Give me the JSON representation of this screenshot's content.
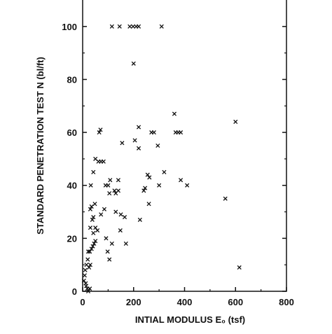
{
  "chart_data": {
    "type": "scatter",
    "title": "",
    "xlabel": "INTIAL MODULUS E₀ (tsf)",
    "ylabel": "STANDARD PENETRATION TEST N (bl/ft)",
    "xlim": [
      0,
      800
    ],
    "ylim": [
      0,
      110
    ],
    "xticks": [
      0,
      200,
      400,
      600,
      800
    ],
    "yticks": [
      0,
      20,
      40,
      60,
      80,
      100
    ],
    "xtick_labels": [
      "0",
      "200",
      "400",
      "600",
      "800"
    ],
    "ytick_labels": [
      "0",
      "20",
      "40",
      "60",
      "80",
      "100"
    ],
    "marker": "x",
    "grid": false,
    "series": [
      {
        "points": [
          [
            5,
            4
          ],
          [
            8,
            6
          ],
          [
            10,
            8
          ],
          [
            12,
            3
          ],
          [
            14,
            2
          ],
          [
            18,
            1
          ],
          [
            22,
            0
          ],
          [
            28,
            1
          ],
          [
            15,
            10
          ],
          [
            20,
            12
          ],
          [
            25,
            9
          ],
          [
            30,
            10
          ],
          [
            22,
            15
          ],
          [
            28,
            15
          ],
          [
            35,
            16
          ],
          [
            40,
            17
          ],
          [
            45,
            18
          ],
          [
            50,
            19
          ],
          [
            42,
            22
          ],
          [
            50,
            24
          ],
          [
            58,
            23
          ],
          [
            30,
            24
          ],
          [
            38,
            27
          ],
          [
            42,
            28
          ],
          [
            30,
            31
          ],
          [
            35,
            32
          ],
          [
            48,
            33
          ],
          [
            32,
            40
          ],
          [
            42,
            45
          ],
          [
            50,
            50
          ],
          [
            62,
            49
          ],
          [
            72,
            49
          ],
          [
            82,
            49
          ],
          [
            65,
            60
          ],
          [
            70,
            61
          ],
          [
            72,
            29
          ],
          [
            85,
            31
          ],
          [
            90,
            40
          ],
          [
            100,
            40
          ],
          [
            108,
            42
          ],
          [
            105,
            37
          ],
          [
            98,
            15
          ],
          [
            105,
            12
          ],
          [
            92,
            20
          ],
          [
            115,
            18
          ],
          [
            125,
            38
          ],
          [
            130,
            37
          ],
          [
            140,
            42
          ],
          [
            140,
            38
          ],
          [
            130,
            30
          ],
          [
            150,
            29
          ],
          [
            148,
            23
          ],
          [
            165,
            28
          ],
          [
            170,
            18
          ],
          [
            155,
            56
          ],
          [
            205,
            57
          ],
          [
            220,
            54
          ],
          [
            220,
            62
          ],
          [
            225,
            27
          ],
          [
            240,
            38
          ],
          [
            245,
            39
          ],
          [
            255,
            44
          ],
          [
            260,
            33
          ],
          [
            262,
            43
          ],
          [
            270,
            60
          ],
          [
            280,
            60
          ],
          [
            295,
            55
          ],
          [
            300,
            40
          ],
          [
            320,
            45
          ],
          [
            360,
            67
          ],
          [
            365,
            60
          ],
          [
            375,
            60
          ],
          [
            385,
            60
          ],
          [
            385,
            42
          ],
          [
            410,
            40
          ],
          [
            560,
            35
          ],
          [
            600,
            64
          ],
          [
            615,
            9
          ],
          [
            115,
            100
          ],
          [
            145,
            100
          ],
          [
            185,
            100
          ],
          [
            198,
            100
          ],
          [
            210,
            100
          ],
          [
            220,
            100
          ],
          [
            310,
            100
          ],
          [
            200,
            86
          ]
        ]
      }
    ]
  }
}
